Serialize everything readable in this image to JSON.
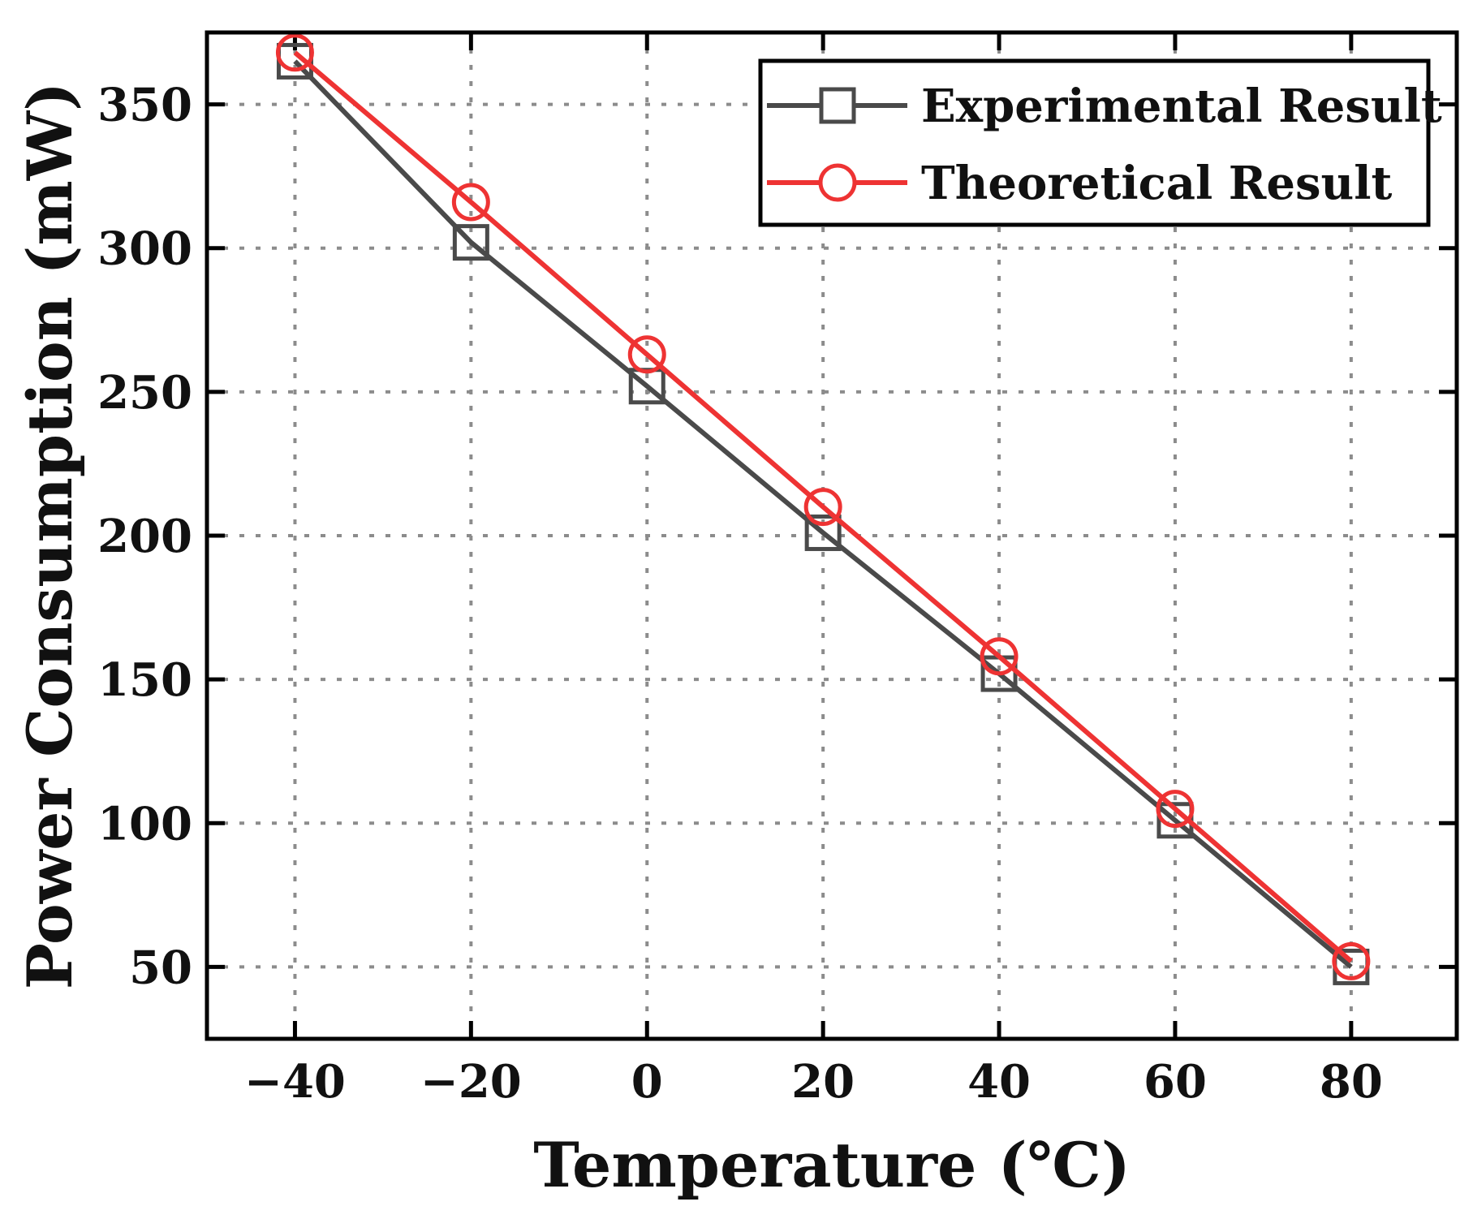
{
  "chart_data": {
    "type": "line",
    "title": "",
    "xlabel": "Temperature (℃)",
    "ylabel": "Power Consumption (mW)",
    "xlim": [
      -50,
      92
    ],
    "ylim": [
      25,
      375
    ],
    "x": [
      -40,
      -20,
      0,
      20,
      40,
      60,
      80
    ],
    "x_ticks": [
      -40,
      -20,
      0,
      20,
      40,
      60,
      80
    ],
    "x_tick_labels": [
      "−40",
      "−20",
      "0",
      "20",
      "40",
      "60",
      "80"
    ],
    "y_ticks": [
      50,
      100,
      150,
      200,
      250,
      300,
      350
    ],
    "y_tick_labels": [
      "50",
      "100",
      "150",
      "200",
      "250",
      "300",
      "350"
    ],
    "grid": true,
    "legend_position": "top-right",
    "series": [
      {
        "name": "Experimental Result",
        "marker": "square",
        "color": "#4a4a4a",
        "values": [
          365,
          302,
          252,
          201,
          152,
          101,
          50
        ]
      },
      {
        "name": "Theoretical Result",
        "marker": "circle",
        "color": "#ee3333",
        "values": [
          368,
          316,
          263,
          210,
          158,
          105,
          52
        ]
      }
    ]
  }
}
